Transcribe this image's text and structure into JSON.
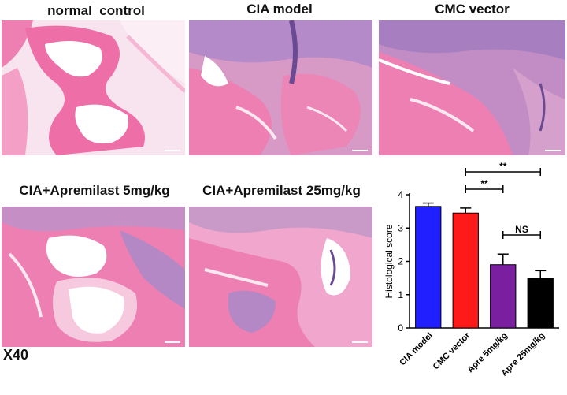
{
  "panels": [
    {
      "id": "normal",
      "label": "normal  control"
    },
    {
      "id": "cia",
      "label": "CIA model"
    },
    {
      "id": "cmc",
      "label": "CMC vector"
    },
    {
      "id": "apre5",
      "label": "CIA+Apremilast 5mg/kg"
    },
    {
      "id": "apre25",
      "label": "CIA+Apremilast 25mg/kg"
    }
  ],
  "magnification": "X40",
  "colors": {
    "tissue_pink": "#ee7fb2",
    "tissue_light": "#f7c6dc",
    "stroma_purple": "#a77fc0",
    "dark_purple": "#6a4a93",
    "marrow_white": "#ffffff"
  },
  "chart_data": {
    "type": "bar",
    "categories": [
      "CIA model",
      "CMC vector",
      "Apre 5mg/kg",
      "Apre 25mg/kg"
    ],
    "values": [
      3.65,
      3.45,
      1.9,
      1.5
    ],
    "errors": [
      0.1,
      0.15,
      0.32,
      0.22
    ],
    "colors": [
      "#1f1fff",
      "#ff1a1a",
      "#7a1fa0",
      "#000000"
    ],
    "ylabel": "Histological score",
    "ylim": [
      0,
      4
    ],
    "yticks": [
      0,
      1,
      2,
      3,
      4
    ],
    "grid": false,
    "significance": [
      {
        "from": 1,
        "to": 3,
        "label": "**"
      },
      {
        "from": 1,
        "to": 2,
        "label": "**"
      },
      {
        "from": 2,
        "to": 3,
        "label": "NS"
      }
    ]
  }
}
